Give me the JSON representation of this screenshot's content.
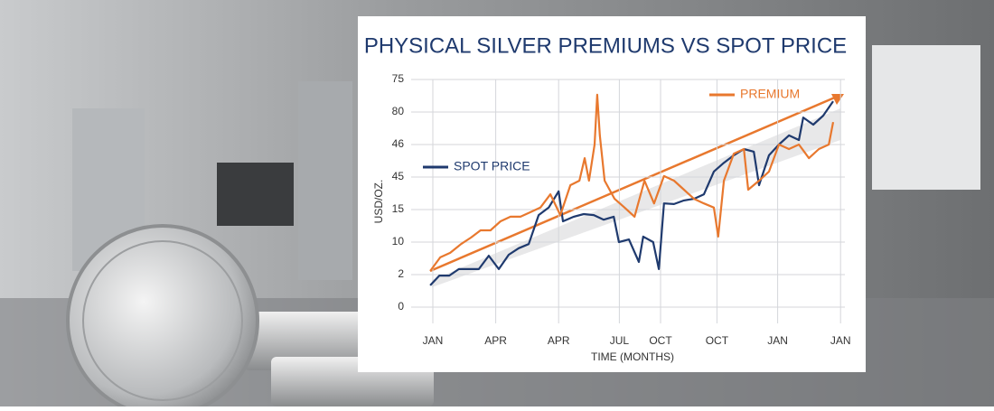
{
  "chart_data": {
    "type": "line",
    "title": "PHYSICAL SILVER PREMIUMS VS SPOT PRICE",
    "x_label": "TIME (MONTHS)",
    "y_label": "USD/OZ.",
    "xlim": [
      0,
      100
    ],
    "xticks": [
      {
        "value": 5,
        "label": "JAN"
      },
      {
        "value": 19.5,
        "label": "APR"
      },
      {
        "value": 34,
        "label": "APR"
      },
      {
        "value": 48,
        "label": "JUL"
      },
      {
        "value": 57.5,
        "label": "OCT"
      },
      {
        "value": 70.5,
        "label": "OCT"
      },
      {
        "value": 84.5,
        "label": "JAN"
      },
      {
        "value": 99,
        "label": "JAN"
      }
    ],
    "ylim": [
      -0.5,
      7
    ],
    "yticks": [
      {
        "value": 0,
        "label": "0"
      },
      {
        "value": 1,
        "label": "2"
      },
      {
        "value": 2,
        "label": "10"
      },
      {
        "value": 3,
        "label": "15"
      },
      {
        "value": 4,
        "label": "45"
      },
      {
        "value": 5,
        "label": "46"
      },
      {
        "value": 6,
        "label": "80"
      },
      {
        "value": 7,
        "label": "75"
      }
    ],
    "grid": true,
    "series": [
      {
        "name": "SPOT PRICE",
        "color": "#1f3a6e",
        "x": [
          4.4,
          6.5,
          8.8,
          11.0,
          13.1,
          15.6,
          17.9,
          20.2,
          22.5,
          24.8,
          27.1,
          29.4,
          31.7,
          34.0,
          35.0,
          37.5,
          39.8,
          42.1,
          44.4,
          46.7,
          47.9,
          50.2,
          52.5,
          53.5,
          55.8,
          57.1,
          58.3,
          60.6,
          62.9,
          65.2,
          67.5,
          69.8,
          72.1,
          74.4,
          76.7,
          79.0,
          80.2,
          82.5,
          84.8,
          87.1,
          89.4,
          90.4,
          92.7,
          95.0,
          97.3
        ],
        "values": [
          0.67,
          0.97,
          0.97,
          1.17,
          1.17,
          1.17,
          1.58,
          1.17,
          1.61,
          1.81,
          1.94,
          2.83,
          3.06,
          3.56,
          2.64,
          2.78,
          2.86,
          2.83,
          2.69,
          2.78,
          2.0,
          2.08,
          1.39,
          2.17,
          2.0,
          1.17,
          3.19,
          3.17,
          3.28,
          3.33,
          3.47,
          4.17,
          4.44,
          4.67,
          4.86,
          4.78,
          3.75,
          4.67,
          5.0,
          5.28,
          5.14,
          5.83,
          5.61,
          5.89,
          6.33
        ]
      },
      {
        "name": "PREMIUM",
        "color": "#e8782e",
        "x": [
          4.4,
          6.7,
          9.0,
          11.5,
          13.8,
          16.0,
          18.3,
          20.6,
          22.9,
          25.2,
          27.5,
          29.8,
          32.1,
          34.4,
          36.7,
          38.8,
          40.0,
          41.0,
          42.3,
          42.9,
          43.5,
          44.6,
          46.9,
          49.2,
          51.5,
          53.8,
          56.0,
          58.3,
          60.6,
          62.9,
          65.2,
          67.5,
          69.8,
          70.8,
          72.1,
          74.4,
          76.7,
          77.7,
          80.2,
          82.5,
          84.8,
          87.1,
          89.4,
          91.7,
          94.0,
          96.3,
          97.3
        ],
        "values": [
          1.11,
          1.53,
          1.67,
          1.94,
          2.14,
          2.36,
          2.36,
          2.64,
          2.78,
          2.78,
          2.92,
          3.06,
          3.47,
          2.83,
          3.75,
          3.89,
          4.58,
          3.89,
          5.0,
          6.53,
          5.28,
          3.89,
          3.33,
          3.06,
          2.78,
          3.89,
          3.19,
          4.03,
          3.89,
          3.61,
          3.33,
          3.19,
          3.06,
          2.17,
          3.89,
          4.72,
          4.86,
          3.61,
          3.89,
          4.17,
          5.0,
          4.86,
          5.0,
          4.58,
          4.86,
          5.0,
          5.69
        ]
      }
    ]
  }
}
